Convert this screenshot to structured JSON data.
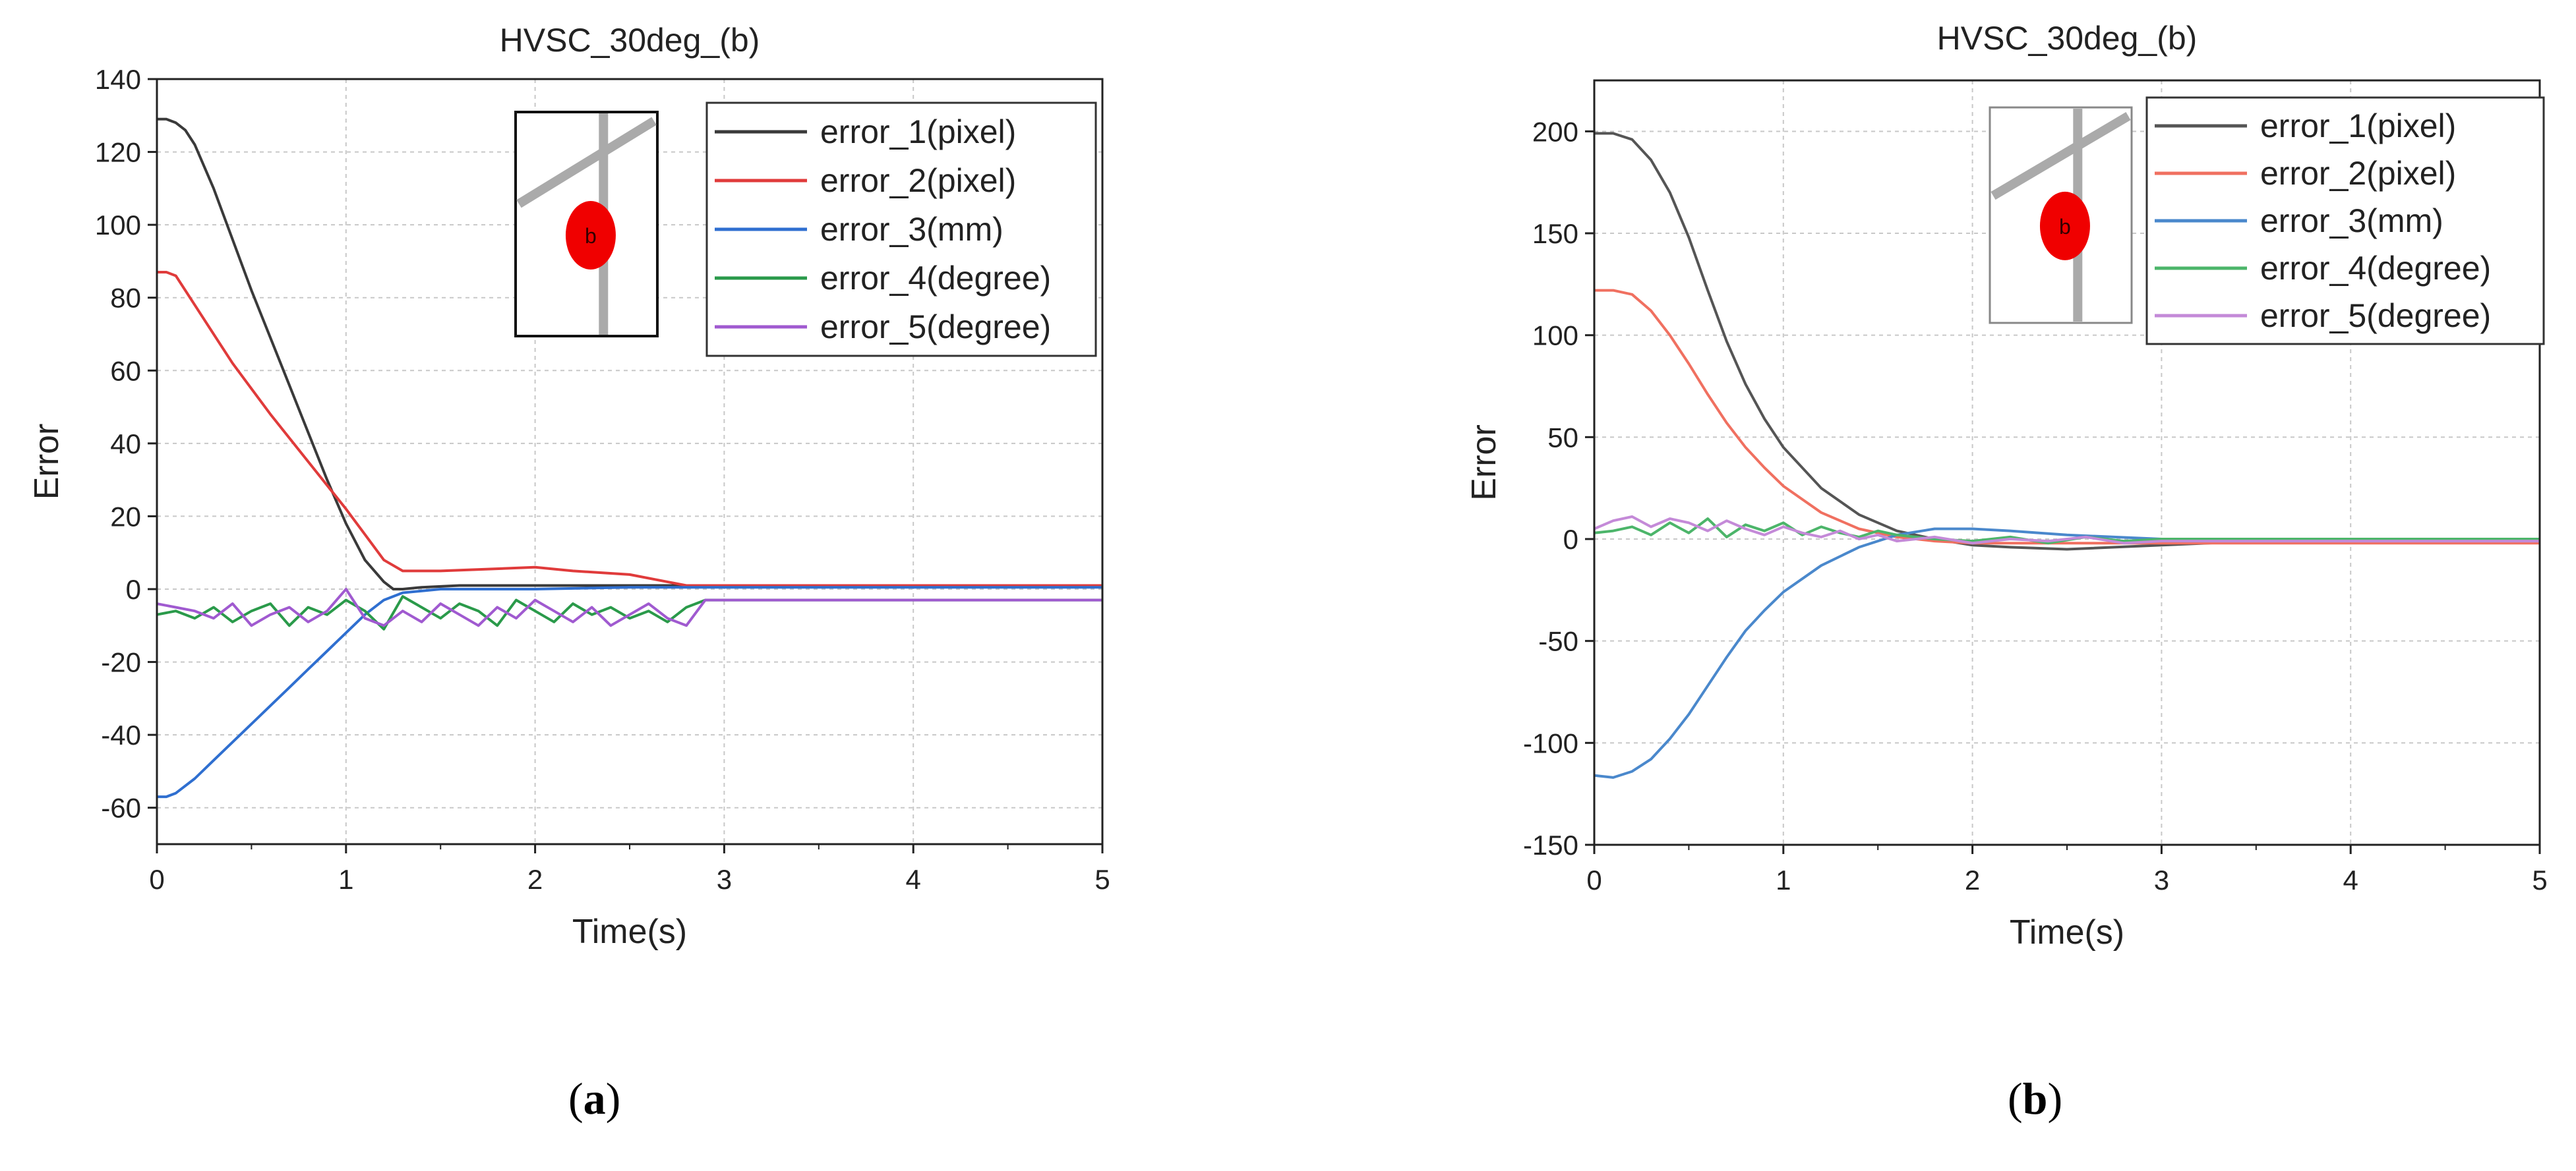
{
  "chart_data": [
    {
      "type": "line",
      "panel_label": "a",
      "title": "HVSC_30deg_(b)",
      "xlabel": "Time(s)",
      "ylabel": "Error",
      "xlim": [
        0,
        5
      ],
      "ylim": [
        -70,
        140
      ],
      "xticks": [
        0,
        1,
        2,
        3,
        4,
        5
      ],
      "yticks": [
        140,
        120,
        100,
        80,
        60,
        40,
        20,
        0,
        -20,
        -40,
        -60
      ],
      "grid": true,
      "legend_position": "top-right",
      "inset_label": "b",
      "series": [
        {
          "name": "error_1(pixel)",
          "color": "#3a3a3a",
          "x": [
            0,
            0.05,
            0.1,
            0.15,
            0.2,
            0.3,
            0.4,
            0.5,
            0.6,
            0.7,
            0.8,
            0.9,
            1.0,
            1.1,
            1.2,
            1.25,
            1.3,
            1.4,
            1.6,
            2.0,
            2.5,
            3.0,
            4.0,
            5.0
          ],
          "y": [
            129,
            129,
            128,
            126,
            122,
            110,
            96,
            82,
            69,
            56,
            43,
            30,
            18,
            8,
            2,
            0,
            0,
            0.5,
            1,
            1,
            1,
            1,
            1,
            1
          ]
        },
        {
          "name": "error_2(pixel)",
          "color": "#e03b3b",
          "x": [
            0,
            0.05,
            0.1,
            0.2,
            0.3,
            0.4,
            0.6,
            0.8,
            1.0,
            1.1,
            1.2,
            1.3,
            1.5,
            2.0,
            2.2,
            2.5,
            2.8,
            3.0,
            4.0,
            5.0
          ],
          "y": [
            87,
            87,
            86,
            78,
            70,
            62,
            48,
            35,
            22,
            15,
            8,
            5,
            5,
            6,
            5,
            4,
            1,
            1,
            1,
            1
          ]
        },
        {
          "name": "error_3(mm)",
          "color": "#2f6fd0",
          "x": [
            0,
            0.05,
            0.1,
            0.2,
            0.3,
            0.4,
            0.5,
            0.6,
            0.7,
            0.8,
            0.9,
            1.0,
            1.1,
            1.2,
            1.3,
            1.5,
            2.0,
            2.5,
            3.0,
            4.0,
            5.0
          ],
          "y": [
            -57,
            -57,
            -56,
            -52,
            -47,
            -42,
            -37,
            -32,
            -27,
            -22,
            -17,
            -12,
            -7,
            -3,
            -1,
            0,
            0,
            0.5,
            0.5,
            0.5,
            0.5
          ]
        },
        {
          "name": "error_4(degree)",
          "color": "#2a9a4a",
          "x": [
            0,
            0.1,
            0.2,
            0.3,
            0.4,
            0.5,
            0.6,
            0.7,
            0.8,
            0.9,
            1.0,
            1.1,
            1.2,
            1.3,
            1.4,
            1.5,
            1.6,
            1.7,
            1.8,
            1.9,
            2.0,
            2.1,
            2.2,
            2.3,
            2.4,
            2.5,
            2.6,
            2.7,
            2.8,
            2.9,
            3.0,
            4.0,
            5.0
          ],
          "y": [
            -7,
            -6,
            -8,
            -5,
            -9,
            -6,
            -4,
            -10,
            -5,
            -7,
            -3,
            -6,
            -11,
            -2,
            -5,
            -8,
            -4,
            -6,
            -10,
            -3,
            -6,
            -9,
            -4,
            -7,
            -5,
            -8,
            -6,
            -9,
            -5,
            -3,
            -3,
            -3,
            -3
          ]
        },
        {
          "name": "error_5(degree)",
          "color": "#a05ad0",
          "x": [
            0,
            0.1,
            0.2,
            0.3,
            0.4,
            0.5,
            0.6,
            0.7,
            0.8,
            0.9,
            1.0,
            1.05,
            1.1,
            1.2,
            1.3,
            1.4,
            1.5,
            1.6,
            1.7,
            1.8,
            1.9,
            2.0,
            2.1,
            2.2,
            2.3,
            2.4,
            2.5,
            2.6,
            2.7,
            2.8,
            2.9,
            3.0,
            4.0,
            5.0
          ],
          "y": [
            -4,
            -5,
            -6,
            -8,
            -4,
            -10,
            -7,
            -5,
            -9,
            -6,
            0,
            -4,
            -8,
            -10,
            -6,
            -9,
            -4,
            -7,
            -10,
            -5,
            -8,
            -3,
            -6,
            -9,
            -5,
            -10,
            -7,
            -4,
            -8,
            -10,
            -3,
            -3,
            -3,
            -3
          ]
        }
      ]
    },
    {
      "type": "line",
      "panel_label": "b",
      "title": "HVSC_30deg_(b)",
      "xlabel": "Time(s)",
      "ylabel": "Error",
      "xlim": [
        0,
        5
      ],
      "ylim": [
        -150,
        225
      ],
      "xticks": [
        0,
        1,
        2,
        3,
        4,
        5
      ],
      "yticks": [
        200,
        150,
        100,
        50,
        0,
        -50,
        -100,
        -150
      ],
      "grid": true,
      "legend_position": "top-right",
      "inset_label": "b",
      "series": [
        {
          "name": "error_1(pixel)",
          "color": "#555555",
          "x": [
            0,
            0.1,
            0.2,
            0.3,
            0.4,
            0.5,
            0.6,
            0.7,
            0.8,
            0.9,
            1.0,
            1.2,
            1.4,
            1.6,
            1.8,
            2.0,
            2.2,
            2.5,
            3.0,
            3.5,
            4.0,
            5.0
          ],
          "y": [
            199,
            199,
            196,
            186,
            170,
            148,
            122,
            97,
            76,
            59,
            45,
            25,
            12,
            4,
            0,
            -3,
            -4,
            -5,
            -3,
            -1,
            -1,
            -1
          ]
        },
        {
          "name": "error_2(pixel)",
          "color": "#f07060",
          "x": [
            0,
            0.1,
            0.2,
            0.3,
            0.4,
            0.5,
            0.6,
            0.7,
            0.8,
            0.9,
            1.0,
            1.2,
            1.4,
            1.6,
            1.8,
            2.0,
            2.5,
            3.0,
            3.5,
            4.0,
            5.0
          ],
          "y": [
            122,
            122,
            120,
            112,
            100,
            86,
            71,
            57,
            45,
            35,
            26,
            13,
            5,
            1,
            -1,
            -2,
            -2,
            -2,
            -2,
            -2,
            -2
          ]
        },
        {
          "name": "error_3(mm)",
          "color": "#4a88cc",
          "x": [
            0,
            0.1,
            0.2,
            0.3,
            0.4,
            0.5,
            0.6,
            0.7,
            0.8,
            0.9,
            1.0,
            1.2,
            1.4,
            1.6,
            1.8,
            2.0,
            2.2,
            2.5,
            3.0,
            3.5,
            4.0,
            5.0
          ],
          "y": [
            -116,
            -117,
            -114,
            -108,
            -98,
            -86,
            -72,
            -58,
            -45,
            -35,
            -26,
            -13,
            -4,
            2,
            5,
            5,
            4,
            2,
            0,
            0,
            0,
            0
          ]
        },
        {
          "name": "error_4(degree)",
          "color": "#4cb56a",
          "x": [
            0,
            0.1,
            0.2,
            0.3,
            0.4,
            0.5,
            0.6,
            0.7,
            0.8,
            0.9,
            1.0,
            1.1,
            1.2,
            1.3,
            1.4,
            1.5,
            1.6,
            1.8,
            2.0,
            2.2,
            2.4,
            2.6,
            2.8,
            3.0,
            3.5,
            4.0,
            5.0
          ],
          "y": [
            3,
            4,
            6,
            2,
            8,
            3,
            10,
            1,
            7,
            4,
            8,
            2,
            6,
            3,
            1,
            4,
            2,
            0,
            -1,
            1,
            -2,
            1,
            -1,
            0,
            0,
            0,
            0
          ]
        },
        {
          "name": "error_5(degree)",
          "color": "#c48ad8",
          "x": [
            0,
            0.1,
            0.2,
            0.3,
            0.4,
            0.5,
            0.6,
            0.7,
            0.8,
            0.9,
            1.0,
            1.1,
            1.2,
            1.3,
            1.4,
            1.5,
            1.6,
            1.8,
            2.0,
            2.2,
            2.4,
            2.6,
            2.8,
            3.0,
            3.5,
            4.0,
            5.0
          ],
          "y": [
            5,
            9,
            11,
            6,
            10,
            8,
            4,
            9,
            5,
            2,
            6,
            3,
            1,
            4,
            0,
            2,
            -1,
            1,
            -2,
            0,
            -1,
            1,
            -2,
            -1,
            -1,
            -1,
            -1
          ]
        }
      ]
    }
  ]
}
